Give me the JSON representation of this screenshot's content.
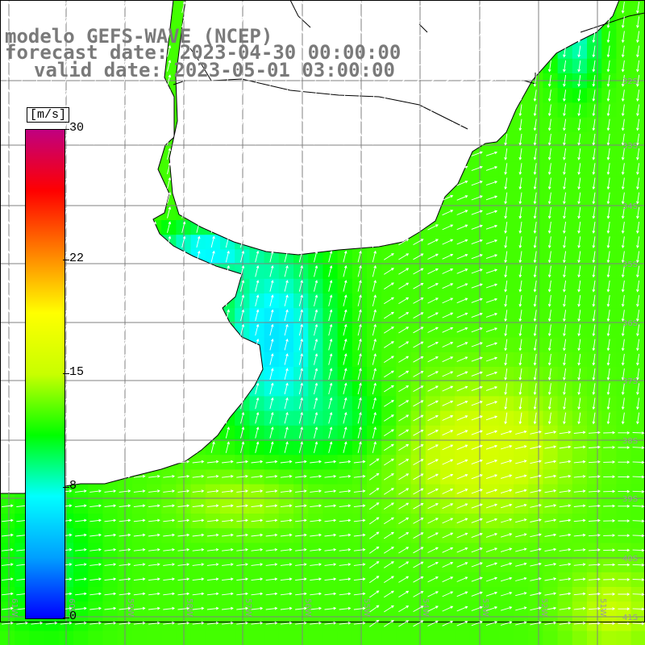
{
  "title": {
    "line1": "modelo GEFS-WAVE (NCEP)",
    "line2": "forecast date: 2023-04-30 00:00:00",
    "line3": "valid date: 2023-05-01 03:00:00"
  },
  "colorbar": {
    "units": "[m/s]",
    "ticks": [
      {
        "value": 30,
        "label": "30"
      },
      {
        "value": 22,
        "label": "22"
      },
      {
        "value": 15,
        "label": "15"
      },
      {
        "value": 8,
        "label": "8"
      },
      {
        "value": 0,
        "label": "0"
      }
    ],
    "range": [
      0,
      30
    ],
    "colors": [
      "#0000ff",
      "#00a0ff",
      "#00ffff",
      "#00ff00",
      "#c8ff00",
      "#ffff00",
      "#ff8000",
      "#ff0000",
      "#c00080"
    ]
  },
  "map": {
    "latitude_labels": [
      "32S",
      "33S",
      "34S",
      "35S",
      "36S",
      "37S",
      "38S",
      "39S",
      "40S",
      "41S"
    ],
    "longitude_labels": [
      "61W",
      "60W",
      "59W",
      "58W",
      "57W",
      "56W",
      "55W",
      "54W",
      "53W",
      "52W",
      "51W"
    ],
    "land_color": "#ffffff",
    "grid_color": "#808080",
    "arrow_color": "#ffffff"
  }
}
